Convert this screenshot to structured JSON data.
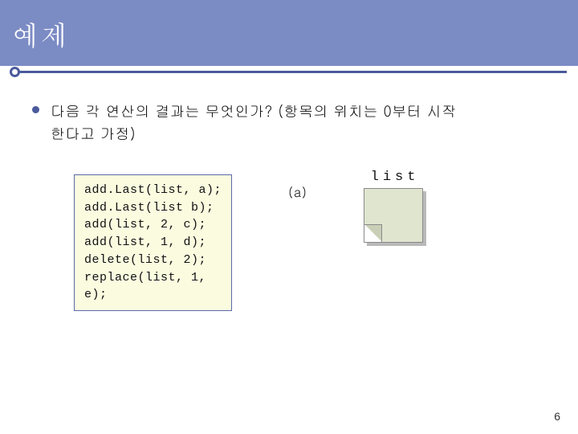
{
  "title": "예제",
  "question_line1": "다음 각 연산의 결과는 무엇인가? (항목의 위치는 0부터 시작",
  "question_line2": "한다고 가정)",
  "code": "add.Last(list, a);\nadd.Last(list b);\nadd(list, 2, c);\nadd(list, 1, d);\ndelete(list, 2);\nreplace(list, 1,\ne);",
  "label_a": "(a)",
  "list_label": "list",
  "page_number": "6",
  "colors": {
    "title_bar_bg": "#7b8bc4",
    "title_text": "#ffffff",
    "underline": "#4a5a9c",
    "bullet": "#4a5a9c",
    "body_text": "#111111",
    "code_bg": "#fbfbe0",
    "code_border": "#5b6aa8",
    "paper_fill": "#e0e5cf",
    "paper_shadow": "#b9b9b9",
    "page_bg": "#ffffff"
  },
  "fonts": {
    "title_size_pt": 26,
    "body_size_pt": 14,
    "code_size_pt": 11
  }
}
